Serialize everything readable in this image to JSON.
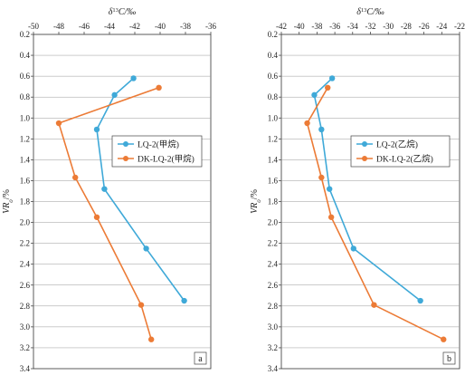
{
  "chart_data": [
    {
      "type": "line",
      "panel_label": "a",
      "xlabel": "δ¹³C/‰",
      "ylabel": "VRo/%",
      "xlim": [
        -50,
        -36
      ],
      "ylim": [
        0.2,
        3.4
      ],
      "y_inverted": true,
      "x_axis_position": "top",
      "xticks": [
        -50,
        -48,
        -46,
        -44,
        -42,
        -40,
        -38,
        -36
      ],
      "yticks": [
        0.2,
        0.4,
        0.6,
        0.8,
        1.0,
        1.2,
        1.4,
        1.6,
        1.8,
        2.0,
        2.2,
        2.4,
        2.6,
        2.8,
        3.0,
        3.2,
        3.4
      ],
      "xtick_labels": [
        "-50",
        "-48",
        "-46",
        "-44",
        "-42",
        "-40",
        "-38",
        "-36"
      ],
      "ytick_labels": [
        "0.2",
        "0.4",
        "0.6",
        "0.8",
        "1.0",
        "1.2",
        "1.4",
        "1.6",
        "1.8",
        "2.0",
        "2.2",
        "2.4",
        "2.6",
        "2.8",
        "3.0",
        "3.2",
        "3.4"
      ],
      "grid": "horizontal",
      "legend_position": "middle-right",
      "series": [
        {
          "name": "LQ-2(甲烷)",
          "color": "#3fa9d8",
          "x": [
            -42.1,
            -43.6,
            -45.0,
            -44.4,
            -41.1,
            -38.1
          ],
          "y": [
            0.62,
            0.78,
            1.11,
            1.68,
            2.25,
            2.75
          ]
        },
        {
          "name": "DK-LQ-2(甲烷)",
          "color": "#ec7b36",
          "x": [
            -40.1,
            -48.0,
            -46.7,
            -45.0,
            -41.5,
            -40.7
          ],
          "y": [
            0.71,
            1.05,
            1.57,
            1.95,
            2.79,
            3.12
          ]
        }
      ]
    },
    {
      "type": "line",
      "panel_label": "b",
      "xlabel": "δ¹³C/‰",
      "ylabel": "VRo/%",
      "xlim": [
        -42,
        -22
      ],
      "ylim": [
        0.2,
        3.4
      ],
      "y_inverted": true,
      "x_axis_position": "top",
      "xticks": [
        -42,
        -40,
        -38,
        -36,
        -34,
        -32,
        -30,
        -28,
        -26,
        -24,
        -22
      ],
      "yticks": [
        0.2,
        0.4,
        0.6,
        0.8,
        1.0,
        1.2,
        1.4,
        1.6,
        1.8,
        2.0,
        2.2,
        2.4,
        2.6,
        2.8,
        3.0,
        3.2,
        3.4
      ],
      "xtick_labels": [
        "-42",
        "-40",
        "-38",
        "-36",
        "-34",
        "-32",
        "-30",
        "-28",
        "-26",
        "-24",
        "-22"
      ],
      "ytick_labels": [
        "0.2",
        "0.4",
        "0.6",
        "0.8",
        "1.0",
        "1.2",
        "1.4",
        "1.6",
        "1.8",
        "2.0",
        "2.2",
        "2.4",
        "2.6",
        "2.8",
        "3.0",
        "3.2",
        "3.4"
      ],
      "grid": "horizontal",
      "legend_position": "middle-right",
      "series": [
        {
          "name": "LQ-2(乙烷)",
          "color": "#3fa9d8",
          "x": [
            -36.3,
            -38.3,
            -37.5,
            -36.6,
            -33.9,
            -26.4
          ],
          "y": [
            0.62,
            0.78,
            1.11,
            1.68,
            2.25,
            2.75
          ]
        },
        {
          "name": "DK-LQ-2(乙烷)",
          "color": "#ec7b36",
          "x": [
            -36.8,
            -39.1,
            -37.5,
            -36.4,
            -31.6,
            -23.8
          ],
          "y": [
            0.71,
            1.05,
            1.57,
            1.95,
            2.79,
            3.12
          ]
        }
      ]
    }
  ]
}
